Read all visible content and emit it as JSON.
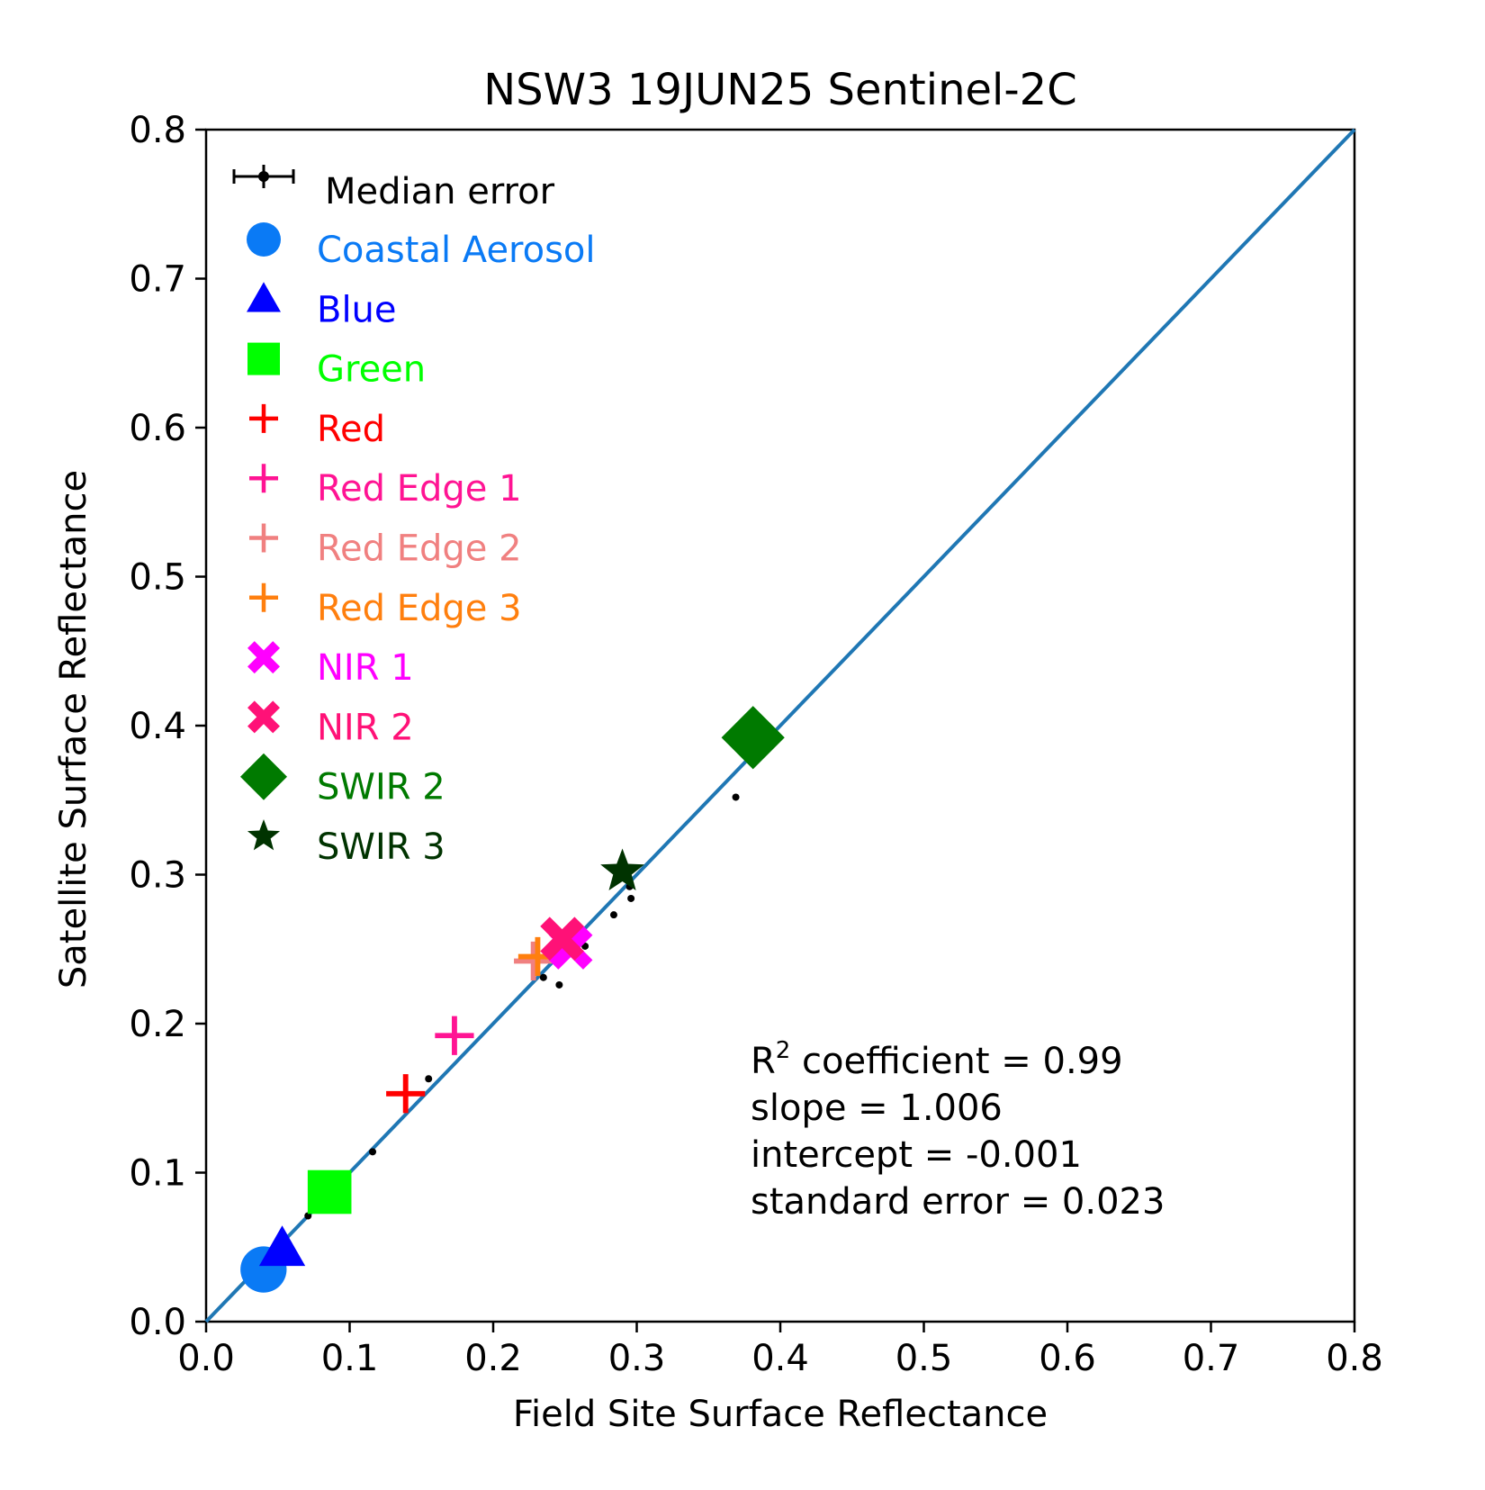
{
  "chart_data": {
    "type": "scatter",
    "title": "NSW3 19JUN25 Sentinel-2C",
    "xlabel": "Field Site Surface Reflectance",
    "ylabel": "Satellite Surface Reflectance",
    "xlim": [
      0.0,
      0.8
    ],
    "ylim": [
      0.0,
      0.8
    ],
    "xticks": [
      "0.0",
      "0.1",
      "0.2",
      "0.3",
      "0.4",
      "0.5",
      "0.6",
      "0.7",
      "0.8"
    ],
    "yticks": [
      "0.0",
      "0.1",
      "0.2",
      "0.3",
      "0.4",
      "0.5",
      "0.6",
      "0.7",
      "0.8"
    ],
    "grid": false,
    "legend_placement": "upper-left",
    "one_to_one_line": {
      "from": [
        0.0,
        0.0
      ],
      "to": [
        0.8,
        0.8
      ],
      "color": "#1f77b4"
    },
    "error_legend_label": "Median error",
    "series": [
      {
        "name": "Coastal Aerosol",
        "color": "#0a7af5",
        "marker": "circle",
        "x": 0.04,
        "y": 0.035
      },
      {
        "name": "Blue",
        "color": "#0000ff",
        "marker": "triangle",
        "x": 0.053,
        "y": 0.049
      },
      {
        "name": "Green",
        "color": "#00ff00",
        "marker": "square",
        "x": 0.086,
        "y": 0.087
      },
      {
        "name": "Red",
        "color": "#ff0000",
        "marker": "plus",
        "x": 0.139,
        "y": 0.153
      },
      {
        "name": "Red Edge 1",
        "color": "#ff1493",
        "marker": "plus",
        "x": 0.173,
        "y": 0.192
      },
      {
        "name": "Red Edge 2",
        "color": "#f08080",
        "marker": "plus",
        "x": 0.228,
        "y": 0.242
      },
      {
        "name": "Red Edge 3",
        "color": "#ff7f0e",
        "marker": "plus",
        "x": 0.231,
        "y": 0.245
      },
      {
        "name": "NIR 1",
        "color": "#ff00ff",
        "marker": "x",
        "x": 0.254,
        "y": 0.251
      },
      {
        "name": "NIR 2",
        "color": "#ff1177",
        "marker": "x",
        "x": 0.248,
        "y": 0.257
      },
      {
        "name": "SWIR 2",
        "color": "#007a00",
        "marker": "diamond",
        "x": 0.381,
        "y": 0.392
      },
      {
        "name": "SWIR 3",
        "color": "#003300",
        "marker": "star",
        "x": 0.29,
        "y": 0.302
      }
    ],
    "field_points": [
      {
        "x": 0.155,
        "y": 0.163
      },
      {
        "x": 0.116,
        "y": 0.114
      },
      {
        "x": 0.098,
        "y": 0.097
      },
      {
        "x": 0.071,
        "y": 0.071
      },
      {
        "x": 0.055,
        "y": 0.055
      },
      {
        "x": 0.235,
        "y": 0.231
      },
      {
        "x": 0.246,
        "y": 0.226
      },
      {
        "x": 0.264,
        "y": 0.252
      },
      {
        "x": 0.284,
        "y": 0.273
      },
      {
        "x": 0.296,
        "y": 0.284
      },
      {
        "x": 0.295,
        "y": 0.292
      },
      {
        "x": 0.369,
        "y": 0.352
      }
    ],
    "stats": {
      "r2_prefix": "R",
      "r2_sup": "2",
      "r2_rest": " coefficient = 0.99",
      "slope": "slope = 1.006",
      "intercept": "intercept = -0.001",
      "std_error": "standard error = 0.023"
    }
  }
}
